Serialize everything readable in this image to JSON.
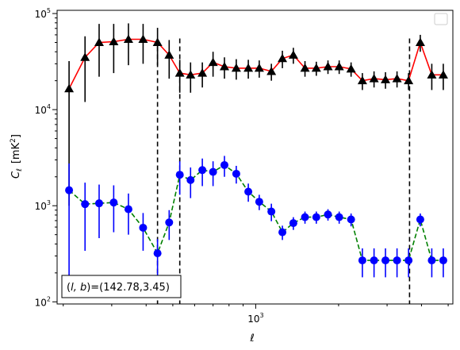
{
  "chart_data": {
    "type": "scatter",
    "x_scale": "log",
    "y_scale": "log",
    "xlim": [
      190,
      5200
    ],
    "ylim": [
      95,
      108000
    ],
    "xlabel_symbol": "ℓ",
    "ylabel_symbol": "C",
    "ylabel_subscript": "ℓ",
    "ylabel_unit": "[mK",
    "ylabel_unit_sup": "2",
    "ylabel_unit_close": "]",
    "x_tick_labels": [
      {
        "value": 1000,
        "base": "10",
        "exp": "3"
      }
    ],
    "y_tick_labels": [
      {
        "value": 100,
        "base": "10",
        "exp": "2"
      },
      {
        "value": 1000,
        "base": "10",
        "exp": "3"
      },
      {
        "value": 10000,
        "base": "10",
        "exp": "4"
      },
      {
        "value": 100000,
        "base": "10",
        "exp": "5"
      }
    ],
    "legend": "top-right",
    "vlines": [
      {
        "x": 440,
        "ymin": 95,
        "ymax": 55000
      },
      {
        "x": 530,
        "ymin": 95,
        "ymax": 55000
      },
      {
        "x": 3620,
        "ymin": 95,
        "ymax": 55000
      }
    ],
    "annotation": {
      "prefix": "(",
      "vars": "l, b",
      "suffix": ")=(142.78,3.45)"
    },
    "series": [
      {
        "color": "#ff0000",
        "marker": "triangle",
        "marker_color": "#000000",
        "errbar_color": "#000000",
        "linestyle": "solid",
        "x": [
          210,
          240,
          270,
          305,
          345,
          390,
          440,
          485,
          530,
          580,
          640,
          700,
          770,
          850,
          940,
          1030,
          1140,
          1250,
          1370,
          1510,
          1660,
          1830,
          2010,
          2220,
          2440,
          2690,
          2960,
          3260,
          3590,
          3960,
          4360,
          4800
        ],
        "y": [
          16500,
          35000,
          50000,
          51000,
          54000,
          54000,
          50000,
          37000,
          24000,
          23000,
          24000,
          31000,
          28000,
          27000,
          27000,
          27000,
          25000,
          34000,
          37000,
          27000,
          27000,
          28000,
          28000,
          26500,
          20000,
          21000,
          20500,
          21000,
          20000,
          50000,
          23000,
          23000
        ],
        "err": [
          15500,
          23000,
          28000,
          27000,
          25000,
          24000,
          21000,
          16000,
          9000,
          8000,
          7000,
          9000,
          7000,
          6500,
          6000,
          5500,
          5000,
          7000,
          7000,
          5000,
          4500,
          4500,
          4500,
          4500,
          4000,
          4000,
          4000,
          4000,
          4000,
          10000,
          7000,
          7000
        ]
      },
      {
        "color": "#008000",
        "marker": "circle",
        "marker_color": "#0000ff",
        "errbar_color": "#0000ff",
        "linestyle": "dashed",
        "x": [
          210,
          240,
          270,
          305,
          345,
          390,
          440,
          485,
          530,
          580,
          640,
          700,
          770,
          850,
          940,
          1030,
          1140,
          1250,
          1370,
          1510,
          1660,
          1830,
          2010,
          2220,
          2440,
          2690,
          2960,
          3260,
          3590,
          3960,
          4360,
          4800
        ],
        "y": [
          1450,
          1040,
          1060,
          1080,
          920,
          590,
          320,
          670,
          2100,
          1850,
          2350,
          2250,
          2650,
          2150,
          1400,
          1100,
          870,
          530,
          660,
          760,
          760,
          810,
          760,
          720,
          270,
          270,
          270,
          270,
          270,
          720,
          270,
          270
        ],
        "err": [
          1300,
          700,
          600,
          550,
          420,
          250,
          130,
          230,
          800,
          650,
          750,
          650,
          650,
          450,
          300,
          200,
          180,
          90,
          100,
          110,
          110,
          110,
          110,
          110,
          90,
          90,
          90,
          90,
          90,
          110,
          90,
          90
        ]
      }
    ]
  }
}
